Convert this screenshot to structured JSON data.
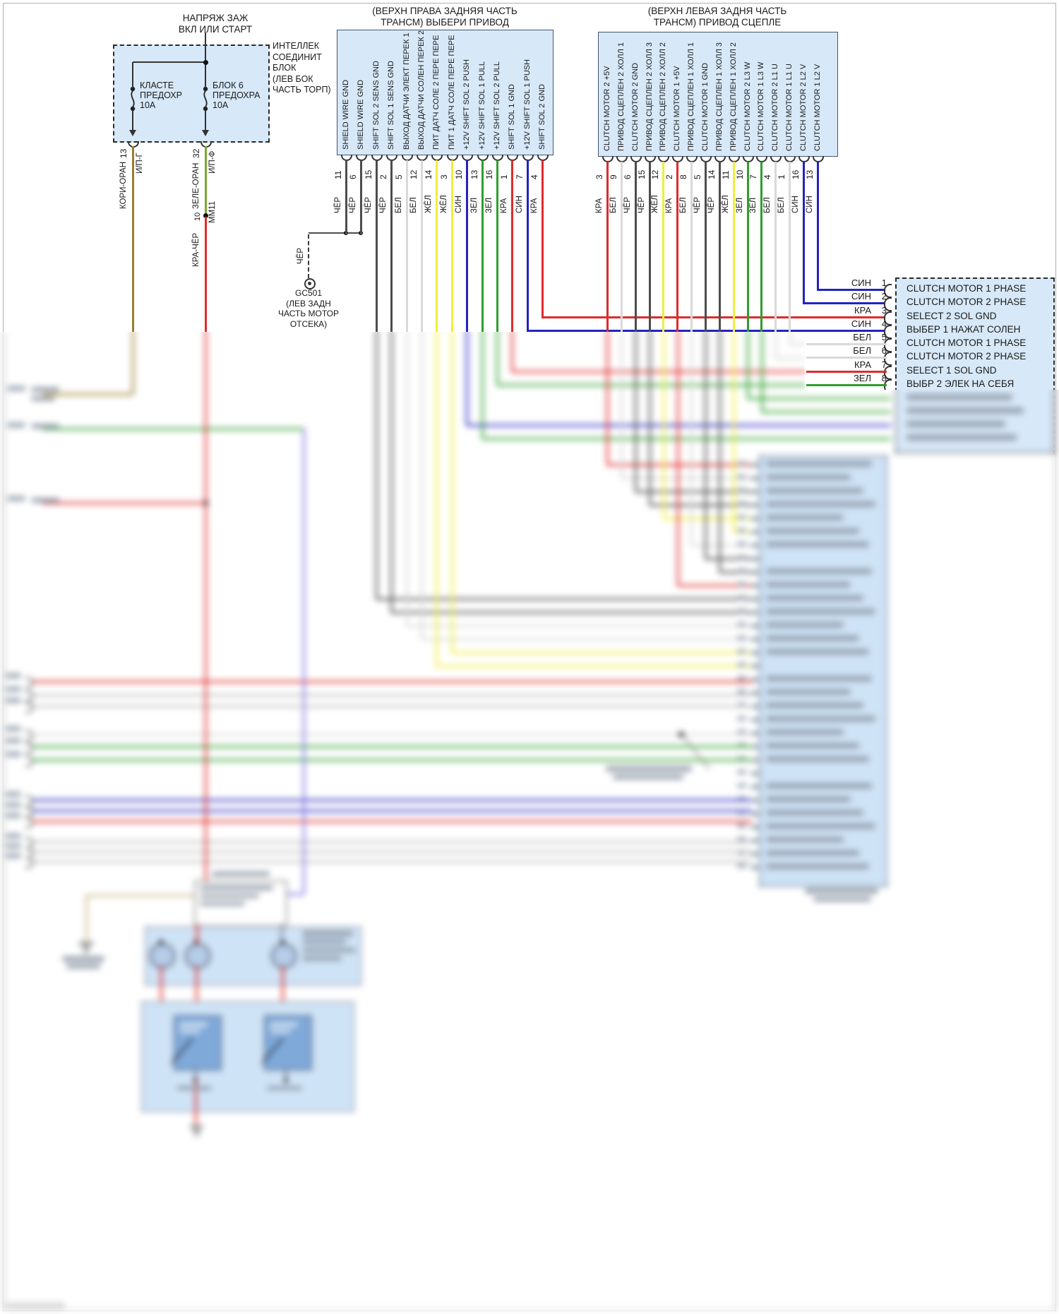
{
  "page": {
    "background": "#ffffff",
    "box_fill": "#d7e8f8"
  },
  "wire_colors": {
    "ЧЁР": "#4d4d4d",
    "БЕЛ": "#d9d9d9",
    "ЖЁЛ": "#f0ee3c",
    "СИН": "#2323c2",
    "ЗЕЛ": "#2e9e2e",
    "КРА": "#df2b2b"
  },
  "power": {
    "title_lines": [
      "НАПРЯЖ ЗАЖ",
      "ВКЛ ИЛИ СТАРТ"
    ],
    "module_label_lines": [
      "ИНТЕЛЛЕК",
      "СОЕДИНИТ",
      "БЛОК",
      "(ЛЕВ БОК",
      "ЧАСТЬ ТОРП)"
    ],
    "fuses": [
      {
        "name_lines": [
          "КЛАСТЕ",
          "ПРЕДОХР",
          "10А"
        ],
        "pin": "13",
        "connector": "И/П-Г",
        "wire": "КОРИ-ОРАН",
        "wire_hex": "#9a7d2e"
      },
      {
        "name_lines": [
          "БЛОК 6",
          "ПРЕДОХРА",
          "10А"
        ],
        "pin": "32",
        "connector": "И/П-Ф",
        "wire": "ЗЕЛЕ-ОРАН",
        "wire_hex": "#7aa82e"
      }
    ],
    "splice": {
      "pin": "10",
      "label": "ММ11",
      "wire": "КРА-ЧЁР",
      "wire_hex": "#df2b2b"
    }
  },
  "connector_select": {
    "title_lines": [
      "(ВЕРХН ПРАВА ЗАДНЯЯ ЧАСТЬ",
      "ТРАНСМ) ВЫБЕРИ ПРИВОД"
    ],
    "pins": [
      {
        "signal": "SHIELD WIRE GND",
        "pin": "11",
        "color": "ЧЁР"
      },
      {
        "signal": "SHIELD WIRE GND",
        "pin": "6",
        "color": "ЧЁР"
      },
      {
        "signal": "SHIFT SOL 2 SENS GND",
        "pin": "15",
        "color": "ЧЁР"
      },
      {
        "signal": "SHIFT SOL 1 SENS GND",
        "pin": "2",
        "color": "ЧЁР"
      },
      {
        "signal": "ВЫХОД ДАТЧИ ЭЛЕКТ ПЕРЕК 1",
        "pin": "5",
        "color": "БЕЛ"
      },
      {
        "signal": "ВЫХОД ДАТЧИ СОЛЕН ПЕРЕК 2",
        "pin": "12",
        "color": "БЕЛ"
      },
      {
        "signal": "ПИТ ДАТЧ СОЛЕ 2 ПЕРЕ ПЕРЕ",
        "pin": "14",
        "color": "ЖЁЛ"
      },
      {
        "signal": "ПИТ 1 ДАТЧ СОЛЕ ПЕРЕ ПЕРЕ",
        "pin": "3",
        "color": "ЖЁЛ"
      },
      {
        "signal": "+12V SHIFT SOL 2 PUSH",
        "pin": "10",
        "color": "СИН"
      },
      {
        "signal": "+12V SHIFT SOL 1 PULL",
        "pin": "13",
        "color": "ЗЕЛ"
      },
      {
        "signal": "+12V SHIFT SOL 2 PULL",
        "pin": "16",
        "color": "ЗЕЛ"
      },
      {
        "signal": "SHIFT SOL 1 GND",
        "pin": "1",
        "color": "КРА"
      },
      {
        "signal": "+12V SHIFT SOL 1 PUSH",
        "pin": "7",
        "color": "СИН"
      },
      {
        "signal": "SHIFT SOL 2 GND",
        "pin": "4",
        "color": "КРА"
      }
    ]
  },
  "ground": {
    "wire_label": "ЧЁР",
    "label_lines": [
      "GC501",
      "(ЛЕВ ЗАДН",
      "ЧАСТЬ МОТОР",
      "ОТСЕКА)"
    ]
  },
  "connector_clutch": {
    "title_lines": [
      "(ВЕРХН ЛЕВАЯ ЗАДНЯ ЧАСТЬ",
      "ТРАНСМ) ПРИВОД СЦЕПЛЕ"
    ],
    "pins": [
      {
        "signal": "CLUTCH MOTOR 2 +5V",
        "pin": "3",
        "color": "КРА"
      },
      {
        "signal": "ПРИВОД СЦЕПЛЕН 2 ХОЛЛ 1",
        "pin": "9",
        "color": "БЕЛ"
      },
      {
        "signal": "CLUTCH MOTOR 2 GND",
        "pin": "6",
        "color": "ЧЁР"
      },
      {
        "signal": "ПРИВОД СЦЕПЛЕН 2 ХОЛЛ 3",
        "pin": "15",
        "color": "ЧЁР"
      },
      {
        "signal": "ПРИВОД СЦЕПЛЕН 2 ХОЛЛ 2",
        "pin": "12",
        "color": "ЖЁЛ"
      },
      {
        "signal": "CLUTCH MOTOR 1 +5V",
        "pin": "2",
        "color": "КРА"
      },
      {
        "signal": "ПРИВОД СЦЕПЛЕН 1 ХОЛЛ 1",
        "pin": "8",
        "color": "БЕЛ"
      },
      {
        "signal": "CLUTCH MOTOR 1 GND",
        "pin": "5",
        "color": "ЧЁР"
      },
      {
        "signal": "ПРИВОД СЦЕПЛЕН 1 ХОЛЛ 3",
        "pin": "14",
        "color": "ЧЁР"
      },
      {
        "signal": "ПРИВОД СЦЕПЛЕН 1 ХОЛЛ 2",
        "pin": "11",
        "color": "ЖЁЛ"
      },
      {
        "signal": "CLUTCH MOTOR 2 L3 W",
        "pin": "10",
        "color": "ЗЕЛ"
      },
      {
        "signal": "CLUTCH MOTOR 1 L3 W",
        "pin": "7",
        "color": "ЗЕЛ"
      },
      {
        "signal": "CLUTCH MOTOR 2 L1 U",
        "pin": "4",
        "color": "БЕЛ"
      },
      {
        "signal": "CLUTCH MOTOR 1 L1 U",
        "pin": "1",
        "color": "БЕЛ"
      },
      {
        "signal": "CLUTCH MOTOR 2 L2 V",
        "pin": "16",
        "color": "СИН"
      },
      {
        "signal": "CLUTCH MOTOR 1 L2 V",
        "pin": "13",
        "color": "СИН"
      }
    ]
  },
  "ecu": {
    "rows": [
      {
        "color": "СИН",
        "pin": "1",
        "label": "CLUTCH MOTOR 1 PHASE"
      },
      {
        "color": "СИН",
        "pin": "2",
        "label": "CLUTCH MOTOR 2 PHASE"
      },
      {
        "color": "КРА",
        "pin": "3",
        "label": "SELECT 2 SOL GND"
      },
      {
        "color": "СИН",
        "pin": "4",
        "label": "ВЫБЕР 1 НАЖАТ СОЛЕН"
      },
      {
        "color": "БЕЛ",
        "pin": "5",
        "label": "CLUTCH MOTOR 1 PHASE"
      },
      {
        "color": "БЕЛ",
        "pin": "6",
        "label": "CLUTCH MOTOR 2 PHASE"
      },
      {
        "color": "КРА",
        "pin": "7",
        "label": "SELECT 1 SOL GND"
      },
      {
        "color": "ЗЕЛ",
        "pin": "8",
        "label": "ВЫБР 2 ЭЛЕК НА СЕБЯ"
      }
    ]
  }
}
